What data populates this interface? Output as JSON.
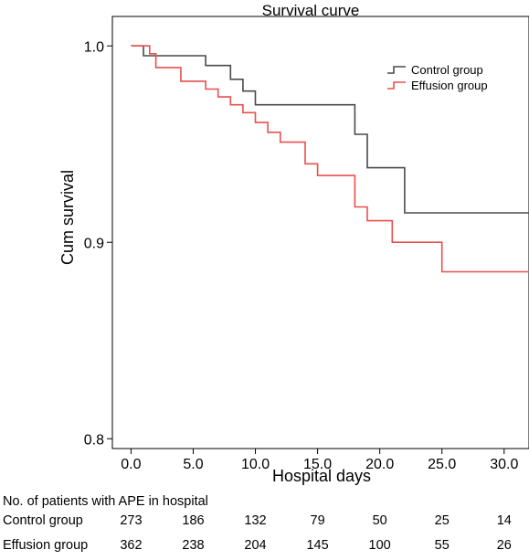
{
  "chart_data": {
    "type": "line",
    "title": "Survival curve",
    "xlabel": "Hospital days",
    "ylabel": "Cum survival",
    "xlim": [
      -1.5,
      32
    ],
    "ylim": [
      0.795,
      1.015
    ],
    "x_ticks": [
      0,
      5,
      10,
      15,
      20,
      25,
      30
    ],
    "x_tick_labels": [
      "0.0",
      "5.0",
      "10.0",
      "15.0",
      "20.0",
      "25.0",
      "30.0"
    ],
    "y_ticks": [
      0.8,
      0.9,
      1.0
    ],
    "y_tick_labels": [
      "0.8",
      "0.9",
      "1.0"
    ],
    "step": true,
    "legend_position": "top-right",
    "series": [
      {
        "name": "Control group",
        "color": "#4a4a4a",
        "points": [
          [
            0,
            1.0
          ],
          [
            1,
            0.995
          ],
          [
            6,
            0.99
          ],
          [
            8,
            0.983
          ],
          [
            9,
            0.977
          ],
          [
            10,
            0.97
          ],
          [
            18,
            0.955
          ],
          [
            19,
            0.938
          ],
          [
            22,
            0.915
          ],
          [
            32,
            0.915
          ]
        ]
      },
      {
        "name": "Effusion group",
        "color": "#e8504e",
        "points": [
          [
            0,
            1.0
          ],
          [
            1.5,
            0.996
          ],
          [
            2,
            0.989
          ],
          [
            4,
            0.982
          ],
          [
            6,
            0.978
          ],
          [
            7,
            0.974
          ],
          [
            8,
            0.97
          ],
          [
            9,
            0.966
          ],
          [
            10,
            0.961
          ],
          [
            11,
            0.956
          ],
          [
            12,
            0.951
          ],
          [
            14,
            0.94
          ],
          [
            15,
            0.934
          ],
          [
            18,
            0.918
          ],
          [
            19,
            0.911
          ],
          [
            21,
            0.9
          ],
          [
            25,
            0.885
          ],
          [
            32,
            0.885
          ]
        ]
      }
    ],
    "risk_table": {
      "title": "No. of patients with APE in hospital",
      "rows": [
        {
          "label": "Control group",
          "values": [
            "273",
            "186",
            "132",
            "79",
            "50",
            "25",
            "14"
          ]
        },
        {
          "label": "Effusion group",
          "values": [
            "362",
            "238",
            "204",
            "145",
            "100",
            "55",
            "26"
          ]
        }
      ]
    }
  }
}
